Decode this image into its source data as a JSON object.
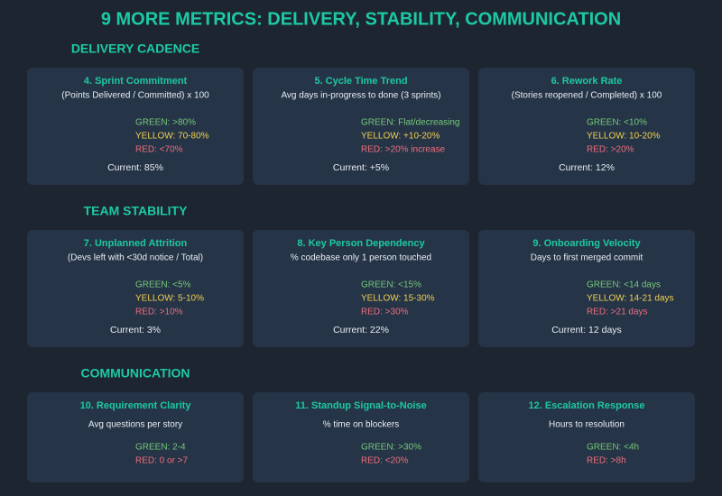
{
  "title": "9 MORE METRICS: DELIVERY, STABILITY, COMMUNICATION",
  "sections": [
    {
      "label": "DELIVERY CADENCE",
      "cards": [
        {
          "title": "4. Sprint Commitment",
          "formula": "(Points Delivered / Committed) x 100",
          "thresholds": [
            {
              "text": "GREEN: >80%",
              "color": "#74c97a"
            },
            {
              "text": "YELLOW: 70-80%",
              "color": "#f0cf4f"
            },
            {
              "text": "RED: <70%",
              "color": "#ec6f7c"
            }
          ],
          "current": "Current: 85%"
        },
        {
          "title": "5. Cycle Time Trend",
          "formula": "Avg days in-progress to done (3 sprints)",
          "thresholds": [
            {
              "text": "GREEN: Flat/decreasing",
              "color": "#74c97a"
            },
            {
              "text": "YELLOW: +10-20%",
              "color": "#f0cf4f"
            },
            {
              "text": "RED: >20% increase",
              "color": "#ec6f7c"
            }
          ],
          "current": "Current: +5%"
        },
        {
          "title": "6. Rework Rate",
          "formula": "(Stories reopened / Completed) x 100",
          "thresholds": [
            {
              "text": "GREEN: <10%",
              "color": "#74c97a"
            },
            {
              "text": "YELLOW: 10-20%",
              "color": "#f0cf4f"
            },
            {
              "text": "RED: >20%",
              "color": "#ec6f7c"
            }
          ],
          "current": "Current: 12%"
        }
      ]
    },
    {
      "label": "TEAM STABILITY",
      "cards": [
        {
          "title": "7. Unplanned Attrition",
          "formula": "(Devs left with <30d notice / Total)",
          "thresholds": [
            {
              "text": "GREEN: <5%",
              "color": "#74c97a"
            },
            {
              "text": "YELLOW: 5-10%",
              "color": "#f0cf4f"
            },
            {
              "text": "RED: >10%",
              "color": "#ec6f7c"
            }
          ],
          "current": "Current: 3%"
        },
        {
          "title": "8. Key Person Dependency",
          "formula": "% codebase only 1 person touched",
          "thresholds": [
            {
              "text": "GREEN: <15%",
              "color": "#74c97a"
            },
            {
              "text": "YELLOW: 15-30%",
              "color": "#f0cf4f"
            },
            {
              "text": "RED: >30%",
              "color": "#ec6f7c"
            }
          ],
          "current": "Current: 22%"
        },
        {
          "title": "9. Onboarding Velocity",
          "formula": "Days to first merged commit",
          "thresholds": [
            {
              "text": "GREEN: <14 days",
              "color": "#74c97a"
            },
            {
              "text": "YELLOW: 14-21 days",
              "color": "#f0cf4f"
            },
            {
              "text": "RED: >21 days",
              "color": "#ec6f7c"
            }
          ],
          "current": "Current: 12 days"
        }
      ]
    },
    {
      "label": "COMMUNICATION",
      "cards": [
        {
          "title": "10. Requirement Clarity",
          "formula": "Avg questions per story",
          "thresholds": [
            {
              "text": "GREEN: 2-4",
              "color": "#74c97a"
            },
            {
              "text": "RED: 0 or >7",
              "color": "#ec6f7c"
            }
          ]
        },
        {
          "title": "11. Standup Signal-to-Noise",
          "formula": "% time on blockers",
          "thresholds": [
            {
              "text": "GREEN: >30%",
              "color": "#74c97a"
            },
            {
              "text": "RED: <20%",
              "color": "#ec6f7c"
            }
          ]
        },
        {
          "title": "12. Escalation Response",
          "formula": "Hours to resolution",
          "thresholds": [
            {
              "text": "GREEN: <4h",
              "color": "#74c97a"
            },
            {
              "text": "RED: >8h",
              "color": "#ec6f7c"
            }
          ]
        }
      ]
    }
  ]
}
